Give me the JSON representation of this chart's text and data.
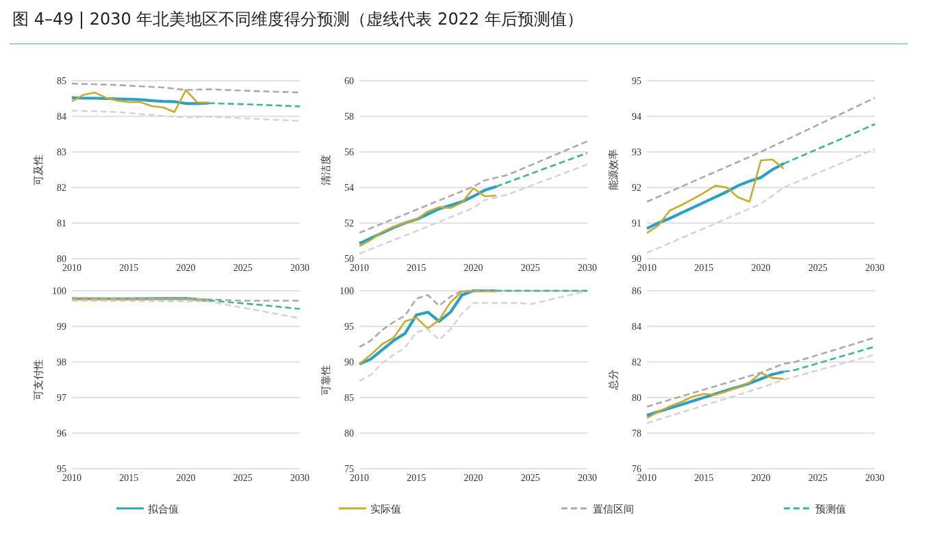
{
  "chart_data": [
    {
      "type": "line",
      "title": "图 4–49 | 2030 年北美地区不同维度得分预测（虚线代表 2022 年后预测值）",
      "ylabel": "可及性",
      "xlim": [
        2010,
        2030
      ],
      "xticks": [
        2010,
        2015,
        2020,
        2025,
        2030
      ],
      "ylim": [
        80,
        85
      ],
      "yticks": [
        80,
        81,
        82,
        83,
        84,
        85
      ],
      "grid": "y",
      "legend": "bottom",
      "series": [
        {
          "name": "拟合值",
          "color": "#2b9fc4",
          "line_style": "solid",
          "x": [
            2010,
            2011,
            2012,
            2013,
            2014,
            2015,
            2016,
            2017,
            2018,
            2019,
            2020,
            2021,
            2022
          ],
          "values": [
            84.52,
            84.51,
            84.51,
            84.5,
            84.49,
            84.48,
            84.47,
            84.44,
            84.42,
            84.41,
            84.36,
            84.36,
            84.37
          ]
        },
        {
          "name": "实际值",
          "color": "#c9aa2a",
          "line_style": "solid",
          "x": [
            2010,
            2011,
            2012,
            2013,
            2014,
            2015,
            2016,
            2017,
            2018,
            2019,
            2020,
            2021,
            2022
          ],
          "values": [
            84.42,
            84.6,
            84.67,
            84.52,
            84.44,
            84.4,
            84.4,
            84.29,
            84.25,
            84.12,
            84.74,
            84.39,
            84.39
          ]
        },
        {
          "name": "置信区间",
          "color": "#aaaaaa",
          "line_style": "dashed",
          "x": [
            2010,
            2014,
            2018,
            2020,
            2022,
            2026,
            2030
          ],
          "values": [
            84.92,
            84.88,
            84.81,
            84.74,
            84.76,
            84.71,
            84.67
          ]
        },
        {
          "color": "#d4d4d4",
          "line_style": "dashed",
          "x": [
            2010,
            2014,
            2018,
            2020,
            2022,
            2026,
            2030
          ],
          "values": [
            84.16,
            84.12,
            84.01,
            83.97,
            83.99,
            83.93,
            83.87
          ]
        },
        {
          "name": "预测值",
          "color": "#3bb39b",
          "line_style": "dashed",
          "x": [
            2022,
            2026,
            2030
          ],
          "values": [
            84.37,
            84.33,
            84.28
          ]
        }
      ]
    },
    {
      "type": "line",
      "ylabel": "清洁度",
      "xlim": [
        2010,
        2030
      ],
      "xticks": [
        2010,
        2015,
        2020,
        2025,
        2030
      ],
      "ylim": [
        50,
        60
      ],
      "yticks": [
        50,
        52,
        54,
        56,
        58,
        60
      ],
      "grid": "y",
      "series": [
        {
          "color": "#2b9fc4",
          "line_style": "solid",
          "x": [
            2010,
            2011,
            2012,
            2013,
            2014,
            2015,
            2016,
            2017,
            2018,
            2019,
            2020,
            2021,
            2022
          ],
          "values": [
            50.85,
            51.15,
            51.45,
            51.75,
            52.0,
            52.2,
            52.5,
            52.8,
            53.0,
            53.2,
            53.5,
            53.85,
            54.05
          ]
        },
        {
          "color": "#c9aa2a",
          "line_style": "solid",
          "x": [
            2010,
            2011,
            2012,
            2013,
            2014,
            2015,
            2016,
            2017,
            2018,
            2019,
            2020,
            2021,
            2022
          ],
          "values": [
            50.7,
            51.05,
            51.5,
            51.8,
            52.0,
            52.2,
            52.65,
            52.9,
            52.85,
            53.15,
            53.95,
            53.5,
            53.55
          ]
        },
        {
          "color": "#aaaaaa",
          "line_style": "dashed",
          "x": [
            2010,
            2015,
            2020,
            2021,
            2023,
            2030
          ],
          "values": [
            51.45,
            52.75,
            54.05,
            54.4,
            54.7,
            56.6
          ]
        },
        {
          "color": "#d4d4d4",
          "line_style": "dashed",
          "x": [
            2010,
            2015,
            2020,
            2021,
            2023,
            2030
          ],
          "values": [
            50.28,
            51.55,
            52.85,
            53.3,
            53.6,
            55.3
          ]
        },
        {
          "color": "#3bb39b",
          "line_style": "dashed",
          "x": [
            2022,
            2026,
            2030
          ],
          "values": [
            54.05,
            55.0,
            55.94
          ]
        }
      ]
    },
    {
      "type": "line",
      "ylabel": "能源效率",
      "xlim": [
        2010,
        2030
      ],
      "xticks": [
        2010,
        2015,
        2020,
        2025,
        2030
      ],
      "ylim": [
        90,
        95
      ],
      "yticks": [
        90,
        91,
        92,
        93,
        94,
        95
      ],
      "grid": "y",
      "series": [
        {
          "color": "#2b9fc4",
          "line_style": "solid",
          "x": [
            2010,
            2011,
            2012,
            2013,
            2014,
            2015,
            2016,
            2017,
            2018,
            2019,
            2020,
            2021,
            2022
          ],
          "values": [
            90.85,
            91.0,
            91.13,
            91.28,
            91.43,
            91.58,
            91.73,
            91.88,
            92.05,
            92.18,
            92.28,
            92.5,
            92.67
          ]
        },
        {
          "color": "#c9aa2a",
          "line_style": "solid",
          "x": [
            2010,
            2011,
            2012,
            2013,
            2014,
            2015,
            2016,
            2017,
            2018,
            2019,
            2020,
            2021,
            2022
          ],
          "values": [
            90.72,
            90.93,
            91.35,
            91.5,
            91.67,
            91.85,
            92.05,
            92.0,
            91.72,
            91.6,
            92.76,
            92.79,
            92.53
          ]
        },
        {
          "color": "#aaaaaa",
          "line_style": "dashed",
          "x": [
            2010,
            2020,
            2030
          ],
          "values": [
            91.6,
            93.0,
            94.52
          ]
        },
        {
          "color": "#d4d4d4",
          "line_style": "dashed",
          "x": [
            2010,
            2020,
            2022,
            2030
          ],
          "values": [
            90.16,
            91.54,
            92.0,
            93.08
          ]
        },
        {
          "color": "#3bb39b",
          "line_style": "dashed",
          "x": [
            2022,
            2026,
            2030
          ],
          "values": [
            92.67,
            93.22,
            93.78
          ]
        }
      ]
    },
    {
      "type": "line",
      "ylabel": "可支付性",
      "xlim": [
        2010,
        2030
      ],
      "xticks": [
        2010,
        2015,
        2020,
        2025,
        2030
      ],
      "ylim": [
        95,
        100
      ],
      "yticks": [
        95,
        96,
        97,
        98,
        99,
        100
      ],
      "grid": "y",
      "series": [
        {
          "color": "#2b9fc4",
          "line_style": "solid",
          "x": [
            2010,
            2014,
            2018,
            2020,
            2022
          ],
          "values": [
            99.77,
            99.77,
            99.78,
            99.78,
            99.73
          ]
        },
        {
          "color": "#c9aa2a",
          "line_style": "solid",
          "x": [
            2010,
            2014,
            2018,
            2020,
            2022
          ],
          "values": [
            99.75,
            99.76,
            99.77,
            99.77,
            99.73
          ]
        },
        {
          "color": "#aaaaaa",
          "line_style": "dashed",
          "x": [
            2010,
            2022,
            2025,
            2030
          ],
          "values": [
            99.8,
            99.76,
            99.72,
            99.72
          ]
        },
        {
          "color": "#d4d4d4",
          "line_style": "dashed",
          "x": [
            2010,
            2022,
            2030
          ],
          "values": [
            99.72,
            99.7,
            99.23
          ]
        },
        {
          "color": "#3bb39b",
          "line_style": "dashed",
          "x": [
            2022,
            2026,
            2030
          ],
          "values": [
            99.73,
            99.62,
            99.49
          ]
        }
      ]
    },
    {
      "type": "line",
      "ylabel": "可靠性",
      "xlim": [
        2010,
        2030
      ],
      "xticks": [
        2010,
        2015,
        2020,
        2025,
        2030
      ],
      "ylim": [
        75,
        100
      ],
      "yticks": [
        75,
        80,
        85,
        90,
        95,
        100
      ],
      "grid": "y",
      "series": [
        {
          "color": "#2b9fc4",
          "line_style": "solid",
          "x": [
            2010,
            2011,
            2012,
            2013,
            2014,
            2015,
            2016,
            2017,
            2018,
            2019,
            2020,
            2021,
            2022
          ],
          "values": [
            89.7,
            90.4,
            91.7,
            93.0,
            94.0,
            96.6,
            97.0,
            95.7,
            97.0,
            99.4,
            100,
            100,
            100
          ]
        },
        {
          "color": "#c9aa2a",
          "line_style": "solid",
          "x": [
            2010,
            2011,
            2012,
            2013,
            2014,
            2015,
            2016,
            2017,
            2018,
            2019,
            2020,
            2021,
            2022
          ],
          "values": [
            89.7,
            91.0,
            92.5,
            93.4,
            95.7,
            96.2,
            94.7,
            95.9,
            98.4,
            99.9,
            99.9,
            99.9,
            99.9
          ]
        },
        {
          "color": "#aaaaaa",
          "line_style": "dashed",
          "x": [
            2010,
            2011,
            2012,
            2013,
            2014,
            2015,
            2016,
            2017,
            2018,
            2019,
            2020,
            2030
          ],
          "values": [
            92.1,
            93.0,
            94.5,
            95.6,
            96.5,
            98.9,
            99.4,
            97.9,
            99.2,
            100,
            100,
            100
          ]
        },
        {
          "color": "#d4d4d4",
          "line_style": "dashed",
          "x": [
            2010,
            2011,
            2012,
            2013,
            2014,
            2015,
            2016,
            2017,
            2018,
            2019,
            2020,
            2024,
            2025,
            2030
          ],
          "values": [
            87.3,
            88.2,
            89.8,
            91.0,
            92.0,
            94.2,
            94.6,
            93.1,
            94.6,
            96.8,
            98.3,
            98.3,
            98.1,
            100
          ]
        },
        {
          "color": "#3bb39b",
          "line_style": "dashed",
          "x": [
            2022,
            2030
          ],
          "values": [
            100,
            100
          ]
        }
      ]
    },
    {
      "type": "line",
      "ylabel": "总分",
      "xlim": [
        2010,
        2030
      ],
      "xticks": [
        2010,
        2015,
        2020,
        2025,
        2030
      ],
      "ylim": [
        76,
        86
      ],
      "yticks": [
        76,
        78,
        80,
        82,
        84,
        86
      ],
      "grid": "y",
      "series": [
        {
          "color": "#2b9fc4",
          "line_style": "solid",
          "x": [
            2010,
            2011,
            2012,
            2013,
            2014,
            2015,
            2016,
            2017,
            2018,
            2019,
            2020,
            2021,
            2022
          ],
          "values": [
            79.0,
            79.2,
            79.4,
            79.6,
            79.8,
            80.0,
            80.2,
            80.4,
            80.6,
            80.8,
            81.05,
            81.3,
            81.45
          ]
        },
        {
          "color": "#c9aa2a",
          "line_style": "solid",
          "x": [
            2010,
            2011,
            2012,
            2013,
            2014,
            2015,
            2016,
            2017,
            2018,
            2019,
            2020,
            2021,
            2022
          ],
          "values": [
            78.85,
            79.2,
            79.5,
            79.75,
            80.05,
            80.2,
            80.15,
            80.35,
            80.6,
            80.85,
            81.38,
            81.1,
            81.05
          ]
        },
        {
          "color": "#aaaaaa",
          "line_style": "dashed",
          "x": [
            2010,
            2020,
            2022,
            2023,
            2030
          ],
          "values": [
            79.49,
            81.4,
            81.9,
            82.0,
            83.37
          ]
        },
        {
          "color": "#d4d4d4",
          "line_style": "dashed",
          "x": [
            2010,
            2020,
            2022,
            2030
          ],
          "values": [
            78.56,
            80.55,
            81.0,
            82.41
          ]
        },
        {
          "color": "#3bb39b",
          "line_style": "dashed",
          "x": [
            2022,
            2023,
            2030
          ],
          "values": [
            81.45,
            81.55,
            82.86
          ]
        }
      ]
    }
  ]
}
